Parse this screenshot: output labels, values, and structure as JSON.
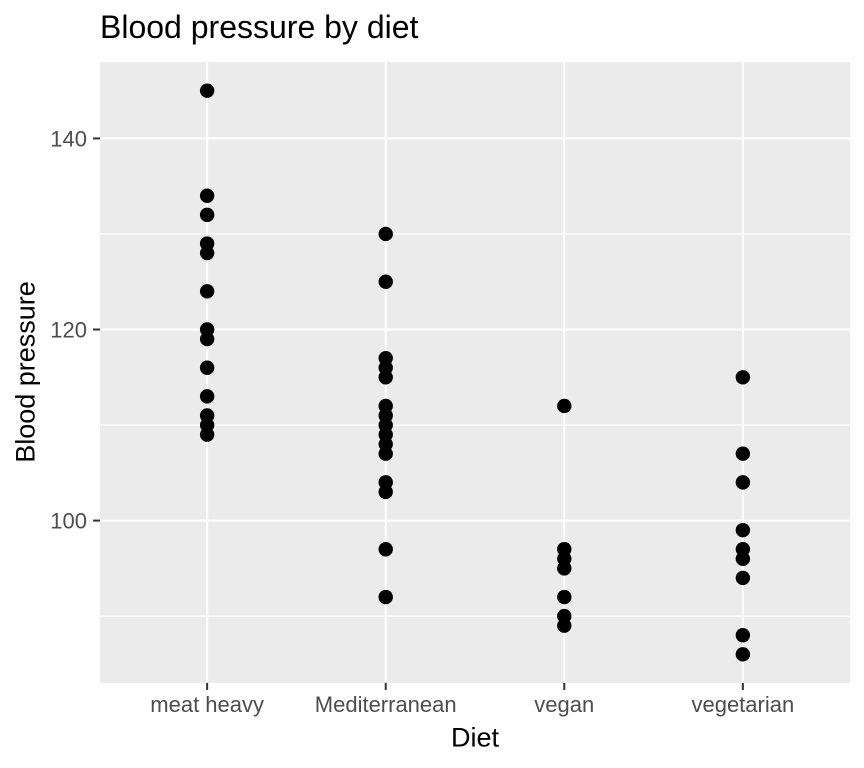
{
  "chart_data": {
    "type": "scatter",
    "title": "Blood pressure by diet",
    "xlabel": "Diet",
    "ylabel": "Blood pressure",
    "categories": [
      "meat heavy",
      "Mediterranean",
      "vegan",
      "vegetarian"
    ],
    "series": [
      {
        "name": "meat heavy",
        "values": [
          145,
          134,
          132,
          129,
          128,
          124,
          120,
          119,
          116,
          113,
          111,
          110,
          109
        ]
      },
      {
        "name": "Mediterranean",
        "values": [
          130,
          125,
          117,
          116,
          115,
          112,
          111,
          110,
          109,
          108,
          107,
          104,
          103,
          97,
          92
        ]
      },
      {
        "name": "vegan",
        "values": [
          112,
          97,
          96,
          95,
          92,
          90,
          89
        ]
      },
      {
        "name": "vegetarian",
        "values": [
          115,
          107,
          104,
          99,
          97,
          96,
          94,
          88,
          86
        ]
      }
    ],
    "ylim": [
      83,
      148
    ],
    "y_major_ticks": [
      100,
      120,
      140
    ],
    "y_minor_ticks": [
      90,
      110,
      130
    ],
    "grid": true,
    "legend": "none",
    "colors": {
      "point": "#000000",
      "panel_background": "#EBEBEB",
      "gridline": "#FFFFFF",
      "tick_mark": "#333333",
      "tick_label": "#4D4D4D",
      "title_text": "#000000"
    }
  }
}
